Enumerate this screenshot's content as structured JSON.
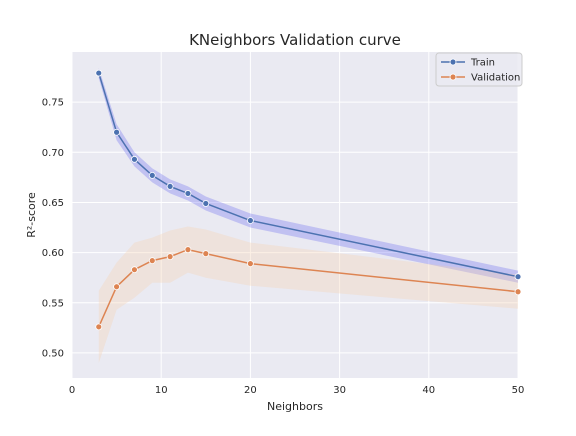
{
  "chart_data": {
    "type": "line",
    "title": "KNeighbors Validation curve",
    "xlabel": "Neighbors",
    "ylabel": "R²-score",
    "xlim": [
      0,
      50
    ],
    "ylim": [
      0.475,
      0.8
    ],
    "xticks": [
      0,
      10,
      20,
      30,
      40,
      50
    ],
    "yticks": [
      0.5,
      0.55,
      0.6,
      0.65,
      0.7,
      0.75
    ],
    "xtick_labels": [
      "0",
      "10",
      "20",
      "30",
      "40",
      "50"
    ],
    "ytick_labels": [
      "0.50",
      "0.55",
      "0.60",
      "0.65",
      "0.70",
      "0.75"
    ],
    "grid": true,
    "legend_position": "top-right",
    "x": [
      3,
      5,
      7,
      9,
      11,
      13,
      15,
      20,
      50
    ],
    "series": [
      {
        "name": "Train",
        "color": "#4c72b0",
        "band_color": "#6a6aef",
        "values": [
          0.779,
          0.72,
          0.693,
          0.677,
          0.666,
          0.659,
          0.649,
          0.632,
          0.576
        ],
        "lower": [
          0.774,
          0.712,
          0.686,
          0.67,
          0.659,
          0.652,
          0.642,
          0.625,
          0.57
        ],
        "upper": [
          0.784,
          0.728,
          0.7,
          0.684,
          0.673,
          0.666,
          0.656,
          0.639,
          0.582
        ]
      },
      {
        "name": "Validation",
        "color": "#dd8452",
        "band_color": "#f5cfae",
        "values": [
          0.526,
          0.566,
          0.583,
          0.592,
          0.596,
          0.603,
          0.599,
          0.589,
          0.561
        ],
        "lower": [
          0.49,
          0.543,
          0.555,
          0.57,
          0.57,
          0.58,
          0.575,
          0.567,
          0.544
        ],
        "upper": [
          0.562,
          0.59,
          0.61,
          0.615,
          0.622,
          0.626,
          0.623,
          0.61,
          0.578
        ]
      }
    ]
  }
}
